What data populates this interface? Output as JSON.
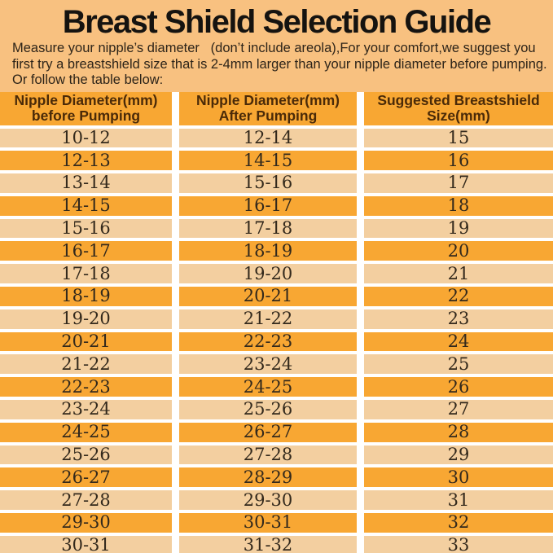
{
  "page": {
    "title": "Breast Shield Selection Guide",
    "intro_lines": [
      "Measure your nipple’s diameter   (don’t include areola),For your comfort,we suggest you",
      "first try a breastshield size that is 2-4mm larger than your nipple diameter before pumping.",
      "Or follow the table below:"
    ]
  },
  "colors": {
    "page_bg": "#F8C180",
    "header_bg": "#F8A733",
    "row_dark": "#F8A733",
    "row_light": "#F3CFA0",
    "separator": "#FFFFFF",
    "header_text": "#4A2A08",
    "cell_text": "#33291C",
    "title_text": "#151310"
  },
  "table": {
    "columns": [
      {
        "lines": [
          "Nipple Diameter(mm)",
          "before Pumping"
        ]
      },
      {
        "lines": [
          "Nipple Diameter(mm)",
          "After Pumping"
        ]
      },
      {
        "lines": [
          "Suggested Breastshield",
          "Size(mm)"
        ]
      }
    ],
    "rows": [
      [
        "10-12",
        "12-14",
        "15"
      ],
      [
        "12-13",
        "14-15",
        "16"
      ],
      [
        "13-14",
        "15-16",
        "17"
      ],
      [
        "14-15",
        "16-17",
        "18"
      ],
      [
        "15-16",
        "17-18",
        "19"
      ],
      [
        "16-17",
        "18-19",
        "20"
      ],
      [
        "17-18",
        "19-20",
        "21"
      ],
      [
        "18-19",
        "20-21",
        "22"
      ],
      [
        "19-20",
        "21-22",
        "23"
      ],
      [
        "20-21",
        "22-23",
        "24"
      ],
      [
        "21-22",
        "23-24",
        "25"
      ],
      [
        "22-23",
        "24-25",
        "26"
      ],
      [
        "23-24",
        "25-26",
        "27"
      ],
      [
        "24-25",
        "26-27",
        "28"
      ],
      [
        "25-26",
        "27-28",
        "29"
      ],
      [
        "26-27",
        "28-29",
        "30"
      ],
      [
        "27-28",
        "29-30",
        "31"
      ],
      [
        "29-30",
        "30-31",
        "32"
      ],
      [
        "30-31",
        "31-32",
        "33"
      ]
    ]
  }
}
